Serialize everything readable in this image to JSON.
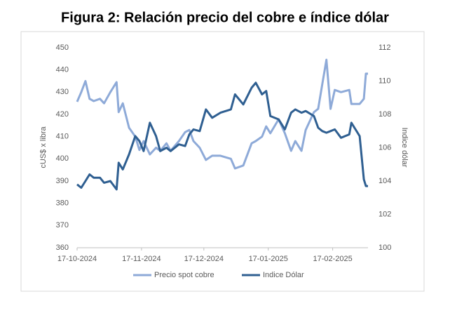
{
  "chart_data": {
    "type": "line",
    "title": "Figura 2: Relación precio del cobre e índice dólar",
    "ylabel": "cUS$ x libra",
    "y2label": "Indice dólar",
    "x": [
      "17-10-2024",
      "19-10-2024",
      "21-10-2024",
      "23-10-2024",
      "25-10-2024",
      "28-10-2024",
      "30-10-2024",
      "02-11-2024",
      "05-11-2024",
      "06-11-2024",
      "08-11-2024",
      "11-11-2024",
      "14-11-2024",
      "16-11-2024",
      "18-11-2024",
      "21-11-2024",
      "24-11-2024",
      "26-11-2024",
      "29-11-2024",
      "01-12-2024",
      "05-12-2024",
      "08-12-2024",
      "10-12-2024",
      "12-12-2024",
      "15-12-2024",
      "18-12-2024",
      "21-12-2024",
      "25-12-2024",
      "30-12-2024",
      "01-01-2025",
      "05-01-2025",
      "09-01-2025",
      "11-01-2025",
      "14-01-2025",
      "16-01-2025",
      "18-01-2025",
      "22-01-2025",
      "25-01-2025",
      "28-01-2025",
      "30-01-2025",
      "02-02-2025",
      "04-02-2025",
      "08-02-2025",
      "10-02-2025",
      "12-02-2025",
      "14-02-2025",
      "16-02-2025",
      "18-02-2025",
      "21-02-2025",
      "25-02-2025",
      "26-02-2025",
      "02-03-2025",
      "04-03-2025",
      "05-03-2025",
      "06-03-2025"
    ],
    "xlim": [
      "17-10-2024",
      "06-03-2025"
    ],
    "xticks": [
      "17-10-2024",
      "17-11-2024",
      "17-12-2024",
      "17-01-2025",
      "17-02-2025"
    ],
    "ylim": [
      360,
      450
    ],
    "yticks": [
      360,
      370,
      380,
      390,
      400,
      410,
      420,
      430,
      440,
      450
    ],
    "y2lim": [
      100,
      112
    ],
    "y2ticks": [
      100,
      102,
      104,
      106,
      108,
      110,
      112
    ],
    "series": [
      {
        "name": "Precio spot cobre",
        "color": "#8eaad8",
        "values": [
          425.7,
          430,
          435,
          427,
          426,
          427,
          425,
          430,
          434.5,
          421,
          425,
          414,
          410,
          404,
          408,
          402,
          405,
          403.6,
          407,
          403.6,
          408,
          412,
          413,
          408,
          405,
          399.5,
          401.4,
          401.4,
          400,
          395.7,
          397,
          407,
          408,
          410,
          414.6,
          411.5,
          417.8,
          411.5,
          403.6,
          408,
          403.6,
          413,
          421,
          422.5,
          433.6,
          444.6,
          422.5,
          431,
          430,
          431,
          424.7,
          424.7,
          427,
          438.3,
          438.3
        ]
      },
      {
        "name": "Indice Dólar",
        "color": "#2f5f91",
        "axis": "y2",
        "values": [
          103.8,
          103.6,
          104.0,
          104.4,
          104.2,
          104.2,
          103.9,
          104.0,
          103.5,
          105.1,
          104.7,
          105.6,
          106.7,
          106.4,
          105.8,
          107.5,
          106.7,
          105.8,
          106.0,
          105.8,
          106.2,
          106.1,
          106.8,
          107.1,
          107.0,
          108.3,
          107.8,
          108.1,
          108.3,
          109.2,
          108.6,
          109.6,
          109.9,
          109.2,
          109.4,
          107.9,
          107.7,
          107.1,
          108.1,
          108.3,
          108.1,
          108.2,
          107.9,
          107.2,
          107.0,
          106.9,
          107.0,
          107.1,
          106.6,
          106.8,
          107.5,
          106.7,
          104.1,
          103.7,
          103.7
        ]
      }
    ]
  }
}
